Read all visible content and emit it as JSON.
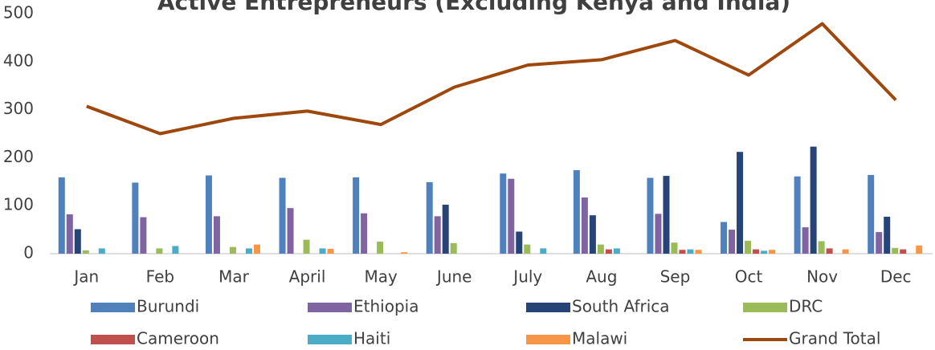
{
  "chart_data": {
    "type": "bar_line",
    "title": "Active Entrepreneurs (Excluding Kenya and India)",
    "categories": [
      "Jan",
      "Feb",
      "Mar",
      "April",
      "May",
      "June",
      "July",
      "Aug",
      "Sep",
      "Oct",
      "Nov",
      "Dec"
    ],
    "series": [
      {
        "name": "Burundi",
        "color": "#4f81bd",
        "type": "bar",
        "values": [
          159,
          148,
          163,
          158,
          159,
          149,
          167,
          174,
          158,
          66,
          161,
          164
        ]
      },
      {
        "name": "Ethiopia",
        "color": "#8064a2",
        "type": "bar",
        "values": [
          82,
          76,
          78,
          95,
          84,
          78,
          156,
          117,
          83,
          50,
          55,
          45
        ]
      },
      {
        "name": "South Africa",
        "color": "#264478",
        "type": "bar",
        "values": [
          51,
          0,
          0,
          0,
          0,
          102,
          46,
          80,
          162,
          212,
          223,
          77
        ]
      },
      {
        "name": "DRC",
        "color": "#9bbb59",
        "type": "bar",
        "values": [
          7,
          11,
          14,
          29,
          25,
          22,
          19,
          19,
          23,
          27,
          26,
          12
        ]
      },
      {
        "name": "Cameroon",
        "color": "#c0504d",
        "type": "bar",
        "values": [
          0,
          0,
          0,
          0,
          0,
          0,
          0,
          9,
          8,
          9,
          11,
          9
        ]
      },
      {
        "name": "Haiti",
        "color": "#4bacc6",
        "type": "bar",
        "values": [
          11,
          16,
          11,
          11,
          0,
          0,
          11,
          11,
          9,
          6,
          0,
          0
        ]
      },
      {
        "name": "Malawi",
        "color": "#f79646",
        "type": "bar",
        "values": [
          0,
          0,
          19,
          10,
          3,
          0,
          0,
          0,
          8,
          8,
          9,
          17
        ]
      },
      {
        "name": "Grand Total",
        "color": "#9e480e",
        "type": "line",
        "values": [
          307,
          250,
          282,
          297,
          269,
          347,
          393,
          404,
          444,
          372,
          479,
          320
        ]
      }
    ],
    "ylim": [
      0,
      500
    ],
    "yticks": [
      0,
      100,
      200,
      300,
      400,
      500
    ],
    "legend": "bottom"
  }
}
